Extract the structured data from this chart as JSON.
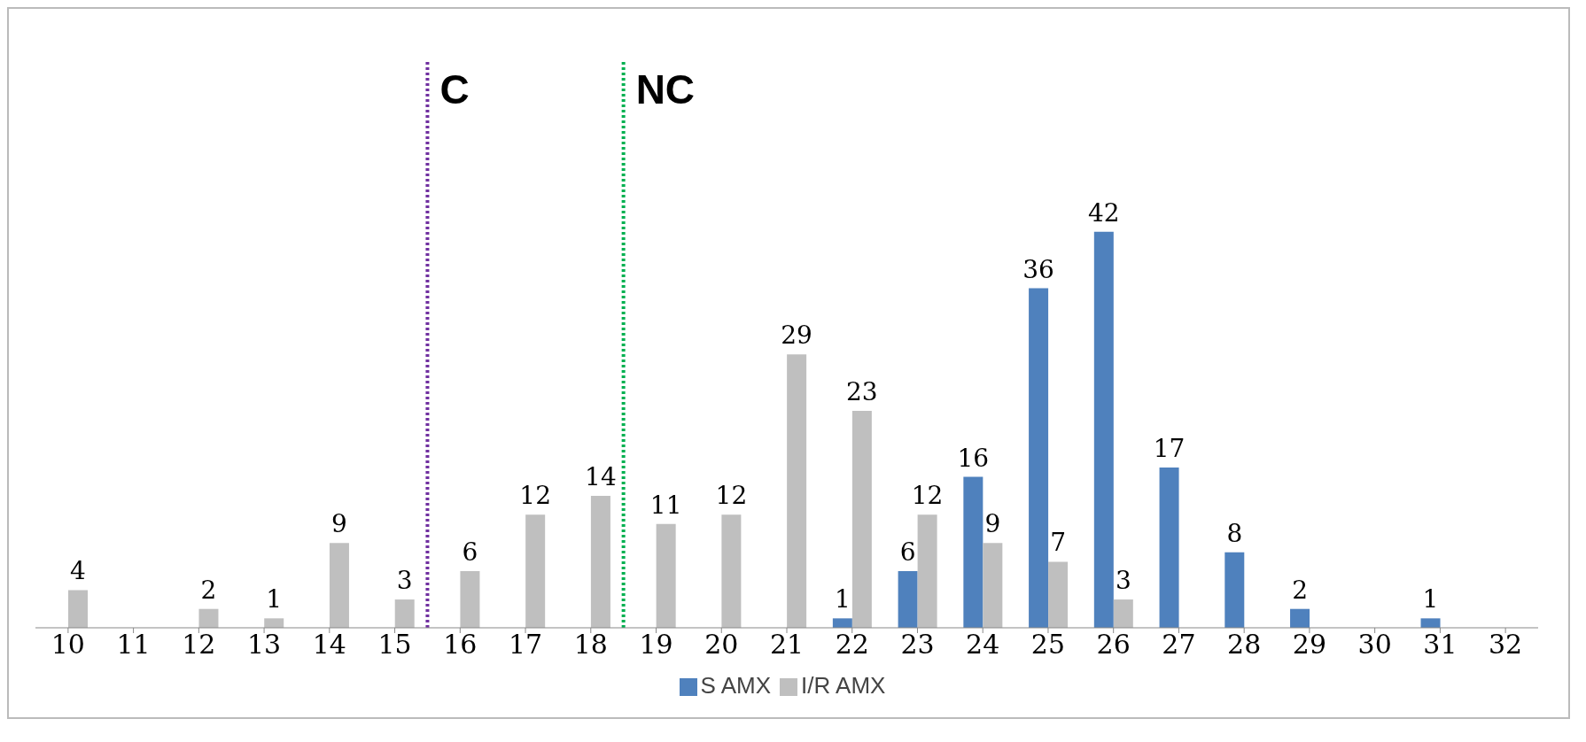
{
  "chart_data": {
    "type": "bar",
    "categories": [
      "10",
      "11",
      "12",
      "13",
      "14",
      "15",
      "16",
      "17",
      "18",
      "19",
      "20",
      "21",
      "22",
      "23",
      "24",
      "25",
      "26",
      "27",
      "28",
      "29",
      "30",
      "31",
      "32"
    ],
    "series": [
      {
        "name": "S AMX",
        "color": "#4f81bd",
        "values": [
          null,
          null,
          null,
          null,
          null,
          null,
          null,
          null,
          null,
          null,
          null,
          null,
          1,
          6,
          16,
          36,
          42,
          17,
          8,
          2,
          null,
          1,
          null
        ]
      },
      {
        "name": "I/R AMX",
        "color": "#bfbfbf",
        "values": [
          4,
          null,
          2,
          1,
          9,
          3,
          6,
          12,
          14,
          11,
          12,
          29,
          23,
          12,
          9,
          7,
          3,
          null,
          null,
          null,
          null,
          null,
          null
        ]
      }
    ],
    "ref_lines": [
      {
        "axis": "x",
        "value": "16",
        "label": "C",
        "color": "#7030a0",
        "line_style": "dotted"
      },
      {
        "axis": "x",
        "value": "19",
        "label": "NC",
        "color": "#00b050",
        "line_style": "dotted"
      }
    ],
    "data_labels": true,
    "tick_labels": "x",
    "legend": "bottom",
    "grid": false
  }
}
